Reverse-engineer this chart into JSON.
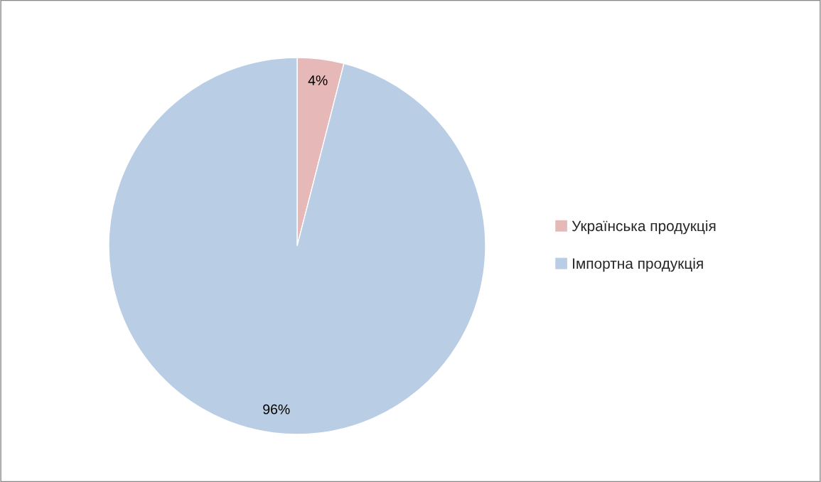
{
  "chart_data": {
    "type": "pie",
    "categories": [
      "Українська продукція",
      "Імпортна продукція"
    ],
    "values": [
      4,
      96
    ],
    "colors": [
      "#e6b9b8",
      "#b9cde5"
    ],
    "value_labels": [
      "4%",
      "96%"
    ],
    "legend": "right"
  }
}
